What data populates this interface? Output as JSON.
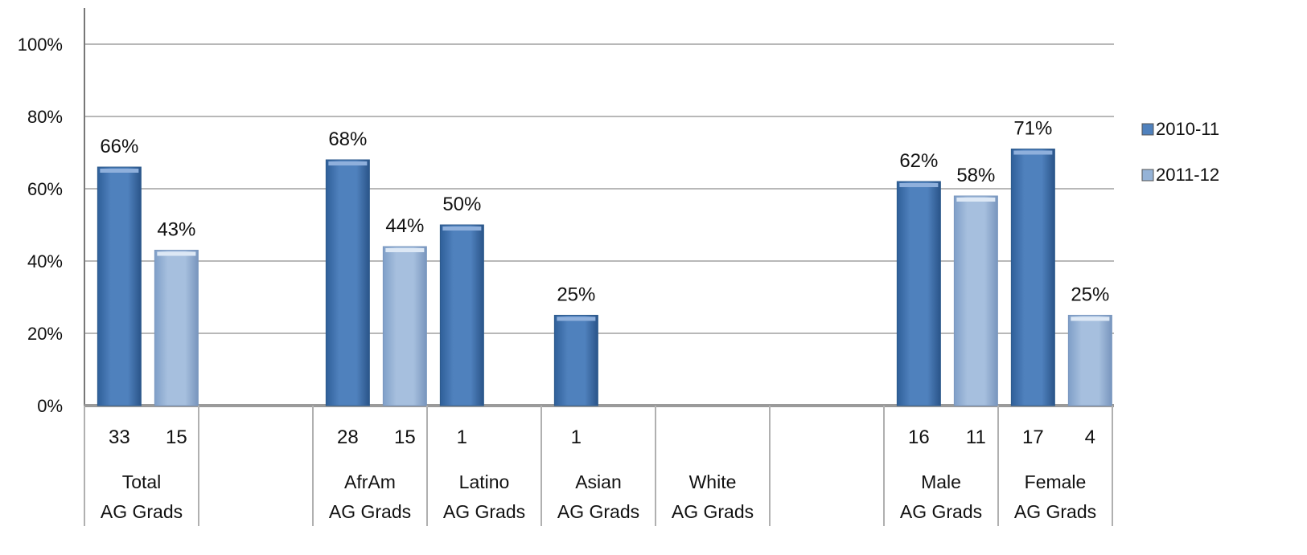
{
  "chart_data": {
    "type": "bar",
    "title": "",
    "xlabel": "",
    "ylabel": "",
    "ylim": [
      0,
      100
    ],
    "y_ticks": [
      "0%",
      "20%",
      "40%",
      "60%",
      "80%",
      "100%"
    ],
    "grid": true,
    "legend_position": "right",
    "categories": [
      {
        "line1": "Total",
        "line2": "AG Grads"
      },
      {
        "line1": "",
        "line2": ""
      },
      {
        "line1": "AfrAm",
        "line2": "AG Grads"
      },
      {
        "line1": "Latino",
        "line2": "AG Grads"
      },
      {
        "line1": "Asian",
        "line2": "AG Grads"
      },
      {
        "line1": "White",
        "line2": "AG Grads"
      },
      {
        "line1": "",
        "line2": ""
      },
      {
        "line1": "Male",
        "line2": "AG Grads"
      },
      {
        "line1": "Female",
        "line2": "AG Grads"
      }
    ],
    "series": [
      {
        "name": "2010-11",
        "color": "#4f81bd",
        "values": [
          66,
          null,
          68,
          50,
          25,
          null,
          null,
          62,
          71
        ],
        "labels": [
          "66%",
          "",
          "68%",
          "50%",
          "25%",
          "",
          "",
          "62%",
          "71%"
        ],
        "counts": [
          "33",
          "",
          "28",
          "1",
          "1",
          "",
          "",
          "16",
          "17"
        ]
      },
      {
        "name": "2011-12",
        "color": "#95b3d7",
        "values": [
          43,
          null,
          44,
          null,
          null,
          null,
          null,
          58,
          25
        ],
        "labels": [
          "43%",
          "",
          "44%",
          "",
          "",
          "",
          "",
          "58%",
          "25%"
        ],
        "counts": [
          "15",
          "",
          "15",
          "",
          "",
          "",
          "",
          "11",
          "4"
        ]
      }
    ]
  }
}
